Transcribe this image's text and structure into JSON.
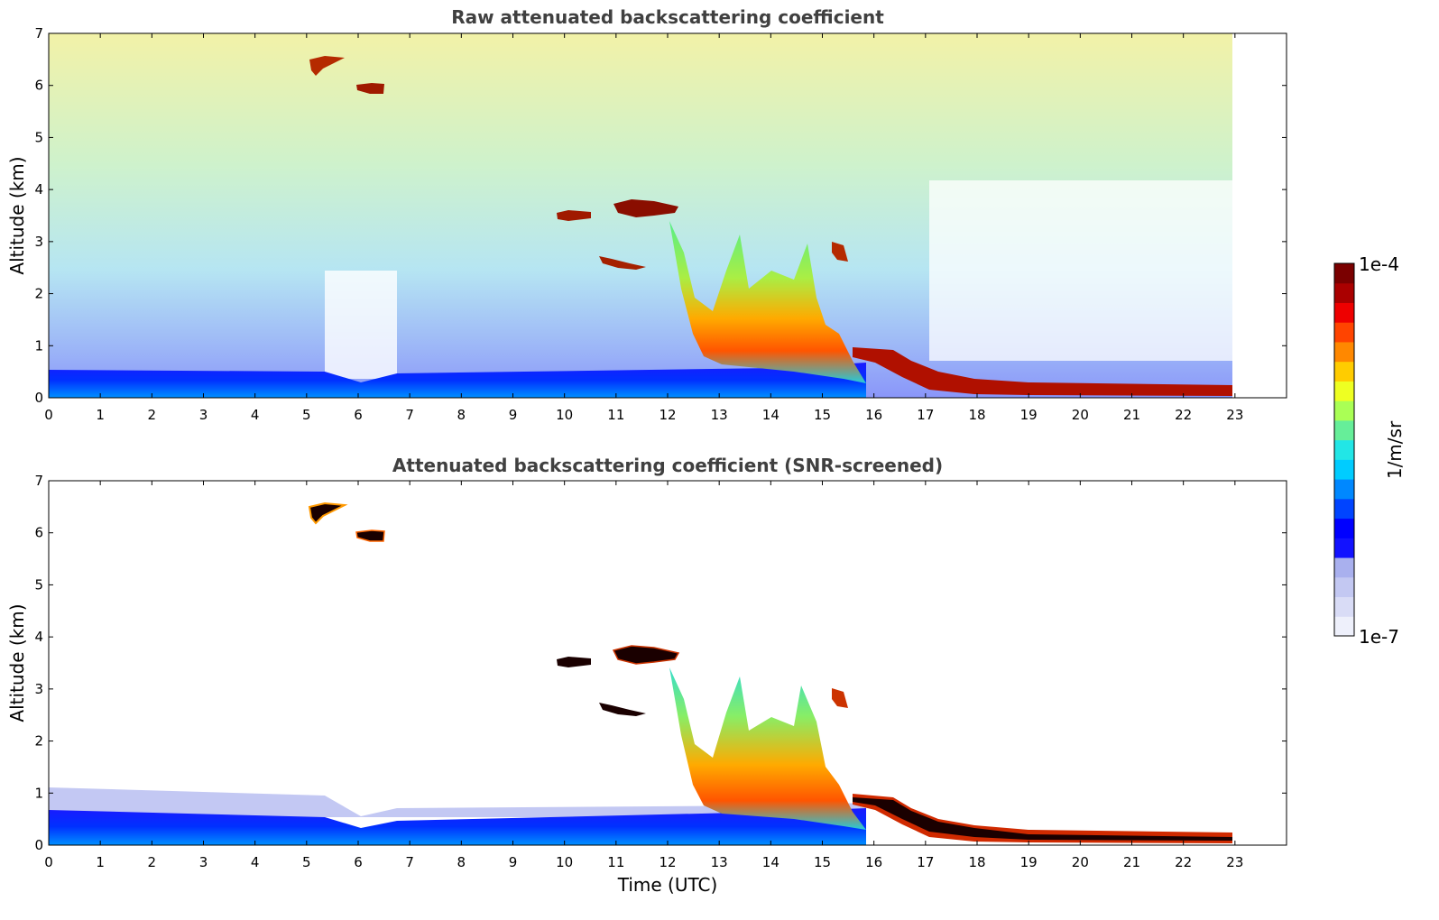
{
  "chart_data": [
    {
      "type": "heatmap",
      "title": "Raw attenuated backscattering coefficient",
      "xlabel": "",
      "ylabel": "Altitude (km)",
      "xlim": [
        0,
        24
      ],
      "ylim": [
        0,
        7
      ],
      "x_ticks": [
        "0",
        "1",
        "2",
        "3",
        "4",
        "5",
        "6",
        "7",
        "8",
        "9",
        "10",
        "11",
        "12",
        "13",
        "14",
        "15",
        "16",
        "17",
        "18",
        "19",
        "20",
        "21",
        "22",
        "23"
      ],
      "y_ticks": [
        "0",
        "1",
        "2",
        "3",
        "4",
        "5",
        "6",
        "7"
      ],
      "data_extent_x": [
        0,
        23
      ],
      "colormap": "jet",
      "colorscale": "log",
      "features": [
        {
          "kind": "aerosol layer",
          "x": [
            0,
            13
          ],
          "y_top": 0.45,
          "value": "1e-6"
        },
        {
          "kind": "noise",
          "x": [
            0,
            23
          ],
          "y": [
            1,
            7
          ],
          "value": "1e-6 to 1e-5"
        },
        {
          "kind": "cloud",
          "x": [
            5.2,
            5.8
          ],
          "y": [
            6.3,
            6.6
          ],
          "value": "1e-4"
        },
        {
          "kind": "cloud",
          "x": [
            6.0,
            6.5
          ],
          "y": [
            5.85,
            6.0
          ],
          "value": "1e-4"
        },
        {
          "kind": "cloud",
          "x": [
            10.8,
            12.2
          ],
          "y": [
            3.55,
            3.8
          ],
          "value": "1e-4"
        },
        {
          "kind": "cloud",
          "x": [
            9.8,
            10.5
          ],
          "y": [
            3.45,
            3.55
          ],
          "value": "1e-4"
        },
        {
          "kind": "cloud",
          "x": [
            10.7,
            11.6
          ],
          "y": [
            2.5,
            2.7
          ],
          "value": "1e-4"
        },
        {
          "kind": "cloud",
          "x": [
            15.2,
            15.5
          ],
          "y": [
            2.6,
            2.9
          ],
          "value": "1e-4"
        },
        {
          "kind": "precipitating cloud",
          "x": [
            12.2,
            15.2
          ],
          "y": [
            0.4,
            3.2
          ],
          "value": "1e-5 to 1e-4"
        },
        {
          "kind": "boundary layer top",
          "x": [
            15.6,
            23
          ],
          "y": [
            0.1,
            0.9
          ],
          "value": "1e-4"
        }
      ]
    },
    {
      "type": "heatmap",
      "title": "Attenuated backscattering coefficient (SNR-screened)",
      "xlabel": "Time (UTC)",
      "ylabel": "Altitude (km)",
      "xlim": [
        0,
        24
      ],
      "ylim": [
        0,
        7
      ],
      "x_ticks": [
        "0",
        "1",
        "2",
        "3",
        "4",
        "5",
        "6",
        "7",
        "8",
        "9",
        "10",
        "11",
        "12",
        "13",
        "14",
        "15",
        "16",
        "17",
        "18",
        "19",
        "20",
        "21",
        "22",
        "23"
      ],
      "y_ticks": [
        "0",
        "1",
        "2",
        "3",
        "4",
        "5",
        "6",
        "7"
      ],
      "data_extent_x": [
        0,
        23
      ],
      "colormap": "jet",
      "colorscale": "log",
      "screened": "SNR",
      "features": [
        {
          "kind": "aerosol layer",
          "x": [
            0,
            13
          ],
          "y_top": 0.6,
          "value": "1e-6"
        },
        {
          "kind": "cloud",
          "x": [
            5.2,
            5.8
          ],
          "y": [
            6.3,
            6.6
          ],
          "value": "1e-4"
        },
        {
          "kind": "cloud",
          "x": [
            6.0,
            6.5
          ],
          "y": [
            5.85,
            6.0
          ],
          "value": "1e-4"
        },
        {
          "kind": "cloud",
          "x": [
            10.8,
            12.2
          ],
          "y": [
            3.55,
            3.8
          ],
          "value": "1e-4"
        },
        {
          "kind": "cloud",
          "x": [
            9.8,
            10.5
          ],
          "y": [
            3.45,
            3.55
          ],
          "value": "1e-4"
        },
        {
          "kind": "cloud",
          "x": [
            10.7,
            11.6
          ],
          "y": [
            2.5,
            2.7
          ],
          "value": "1e-4"
        },
        {
          "kind": "cloud",
          "x": [
            15.2,
            15.5
          ],
          "y": [
            2.6,
            2.9
          ],
          "value": "1e-4"
        },
        {
          "kind": "precipitating cloud",
          "x": [
            12.2,
            15.2
          ],
          "y": [
            0.4,
            3.2
          ],
          "value": "1e-5 to 1e-4"
        },
        {
          "kind": "boundary layer top",
          "x": [
            15.6,
            23
          ],
          "y": [
            0.1,
            0.9
          ],
          "value": "1e-4"
        }
      ]
    }
  ],
  "colorbar": {
    "label": "1/m/sr",
    "max_label": "1e-4",
    "min_label": "1e-7",
    "scale": "log",
    "colors": [
      "#eef0fb",
      "#d9dcf6",
      "#c3c8f2",
      "#a9b0ee",
      "#1212ff",
      "#0000ff",
      "#0044ff",
      "#0088ff",
      "#00ccff",
      "#22e6e6",
      "#66ee99",
      "#aaff55",
      "#eeff22",
      "#ffcc00",
      "#ff8800",
      "#ff4400",
      "#ee0000",
      "#aa0000",
      "#7a0000"
    ]
  }
}
